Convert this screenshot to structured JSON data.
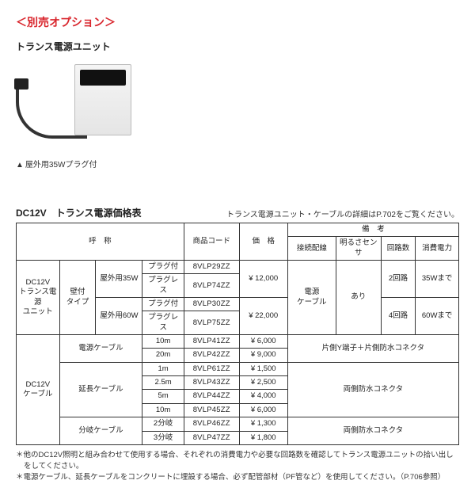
{
  "titleRed": "＜別売オプション＞",
  "subtitle": "トランス電源ユニット",
  "illusCaption": "屋外用35Wプラグ付",
  "tableTitle": "DC12V　トランス電源価格表",
  "tableNoteRight": "トランス電源ユニット・ケーブルの詳細はP.702をご覧ください。",
  "head": {
    "name": "呼　称",
    "code": "商品コード",
    "price": "価　格",
    "remarks": "備　考",
    "rem1": "接続配線",
    "rem2": "明るさセンサ",
    "rem3": "回路数",
    "rem4": "消費電力"
  },
  "unitGroup": "DC12V\nトランス電源\nユニット",
  "unitType": "壁付\nタイプ",
  "unitRows": [
    {
      "spec": "屋外用35W",
      "variant": "プラグ付",
      "code": "8VLP29ZZ",
      "price": "¥ 12,000",
      "circuits": "2回路",
      "power": "35Wまで",
      "span": true
    },
    {
      "spec": "",
      "variant": "プラグレス",
      "code": "8VLP74ZZ",
      "price": "",
      "circuits": "",
      "power": "",
      "span": false
    },
    {
      "spec": "屋外用60W",
      "variant": "プラグ付",
      "code": "8VLP30ZZ",
      "price": "¥ 22,000",
      "circuits": "4回路",
      "power": "60Wまで",
      "span": true
    },
    {
      "spec": "",
      "variant": "プラグレス",
      "code": "8VLP75ZZ",
      "price": "",
      "circuits": "",
      "power": "",
      "span": false
    }
  ],
  "unitRemarks": {
    "conn": "電源\nケーブル",
    "sensor": "あり"
  },
  "cableGroup": "DC12V\nケーブル",
  "cableRows": [
    {
      "cat": "電源ケーブル",
      "len": "10m",
      "code": "8VLP41ZZ",
      "price": "¥  6,000",
      "note": "片側Y端子＋片側防水コネクタ",
      "catSpan": 2,
      "noteSpan": 2
    },
    {
      "cat": "",
      "len": "20m",
      "code": "8VLP42ZZ",
      "price": "¥  9,000",
      "note": "",
      "catSpan": 0,
      "noteSpan": 0
    },
    {
      "cat": "延長ケーブル",
      "len": "1m",
      "code": "8VLP61ZZ",
      "price": "¥  1,500",
      "note": "両側防水コネクタ",
      "catSpan": 4,
      "noteSpan": 4
    },
    {
      "cat": "",
      "len": "2.5m",
      "code": "8VLP43ZZ",
      "price": "¥  2,500",
      "note": "",
      "catSpan": 0,
      "noteSpan": 0
    },
    {
      "cat": "",
      "len": "5m",
      "code": "8VLP44ZZ",
      "price": "¥  4,000",
      "note": "",
      "catSpan": 0,
      "noteSpan": 0
    },
    {
      "cat": "",
      "len": "10m",
      "code": "8VLP45ZZ",
      "price": "¥  6,000",
      "note": "",
      "catSpan": 0,
      "noteSpan": 0
    },
    {
      "cat": "分岐ケーブル",
      "len": "2分岐",
      "code": "8VLP46ZZ",
      "price": "¥  1,300",
      "note": "両側防水コネクタ",
      "catSpan": 2,
      "noteSpan": 2
    },
    {
      "cat": "",
      "len": "3分岐",
      "code": "8VLP47ZZ",
      "price": "¥  1,800",
      "note": "",
      "catSpan": 0,
      "noteSpan": 0
    }
  ],
  "footnotes": [
    "＊他のDC12V照明と組み合わせて使用する場合、それぞれの消費電力や必要な回路数を確認してトランス電源ユニットの拾い出しをしてください。",
    "＊電源ケーブル、延長ケーブルをコンクリートに埋設する場合、必ず配管部材（PF管など）を使用してください。（P.706参照）"
  ]
}
